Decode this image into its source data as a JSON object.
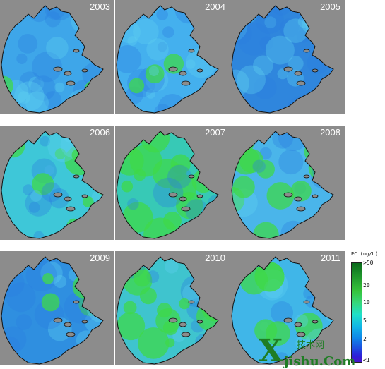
{
  "panels": [
    {
      "year": "2003",
      "fill": "#3ea6e9",
      "green": 0.1
    },
    {
      "year": "2004",
      "fill": "#44b0ee",
      "green": 0.12
    },
    {
      "year": "2005",
      "fill": "#2f86dd",
      "green": 0.0
    },
    {
      "year": "2006",
      "fill": "#3ec7d8",
      "green": 0.3
    },
    {
      "year": "2007",
      "fill": "#37c9b6",
      "green": 0.65
    },
    {
      "year": "2008",
      "fill": "#4ab5ea",
      "green": 0.4
    },
    {
      "year": "2009",
      "fill": "#2f8fe0",
      "green": 0.18
    },
    {
      "year": "2010",
      "fill": "#3fc4ce",
      "green": 0.5
    },
    {
      "year": "2011",
      "fill": "#40b6e8",
      "green": 0.25
    }
  ],
  "legend": {
    "title": "PC (ug/L)",
    "ticks": [
      ">50",
      "20",
      "10",
      "5",
      "2",
      "<1"
    ]
  },
  "watermark": {
    "big": "X",
    "small": "技术网",
    "domain": "jishu.Com"
  }
}
